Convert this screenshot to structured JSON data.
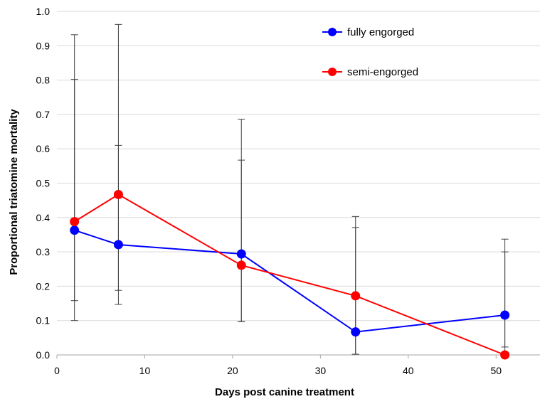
{
  "chart_data": {
    "type": "line",
    "title": "",
    "xlabel": "Days post canine treatment",
    "ylabel": "Proportional triatomine mortality",
    "xlim": [
      0,
      55
    ],
    "ylim": [
      0.0,
      1.0
    ],
    "x_ticks": [
      "0",
      "10",
      "20",
      "30",
      "40",
      "50"
    ],
    "y_ticks": [
      "0.0",
      "0.1",
      "0.2",
      "0.3",
      "0.4",
      "0.5",
      "0.6",
      "0.7",
      "0.8",
      "0.9",
      "1.0"
    ],
    "grid": "horizontal",
    "legend_position": "top-right",
    "series": [
      {
        "name": "fully engorged",
        "color": "#0000ff",
        "points": [
          {
            "x": 2,
            "y": 0.363,
            "lower": 0.1,
            "upper": 0.802
          },
          {
            "x": 7,
            "y": 0.321,
            "lower": 0.147,
            "upper": 0.61
          },
          {
            "x": 21,
            "y": 0.294,
            "lower": 0.097,
            "upper": 0.567
          },
          {
            "x": 34,
            "y": 0.067,
            "lower": 0.002,
            "upper": 0.371
          },
          {
            "x": 51,
            "y": 0.116,
            "lower": 0.023,
            "upper": 0.3
          }
        ]
      },
      {
        "name": "semi-engorged",
        "color": "#ff0000",
        "points": [
          {
            "x": 2,
            "y": 0.388,
            "lower": 0.158,
            "upper": 0.932
          },
          {
            "x": 7,
            "y": 0.467,
            "lower": 0.188,
            "upper": 0.962
          },
          {
            "x": 21,
            "y": 0.261,
            "lower": 0.097,
            "upper": 0.686
          },
          {
            "x": 34,
            "y": 0.172,
            "lower": 0.002,
            "upper": 0.403
          },
          {
            "x": 51,
            "y": 0.0,
            "lower": 0.0,
            "upper": 0.337
          }
        ]
      }
    ]
  }
}
